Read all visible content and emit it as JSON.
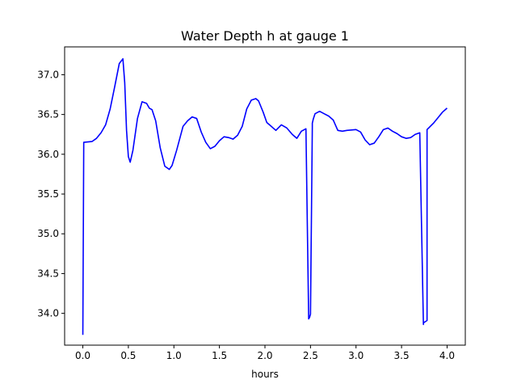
{
  "chart_data": {
    "type": "line",
    "title": "Water Depth h at gauge 1",
    "xlabel": "hours",
    "ylabel": "",
    "xlim": [
      -0.2,
      4.2
    ],
    "ylim": [
      33.6,
      37.35
    ],
    "grid": false,
    "xticks": [
      {
        "value": 0.0,
        "label": "0.0"
      },
      {
        "value": 0.5,
        "label": "0.5"
      },
      {
        "value": 1.0,
        "label": "1.0"
      },
      {
        "value": 1.5,
        "label": "1.5"
      },
      {
        "value": 2.0,
        "label": "2.0"
      },
      {
        "value": 2.5,
        "label": "2.5"
      },
      {
        "value": 3.0,
        "label": "3.0"
      },
      {
        "value": 3.5,
        "label": "3.5"
      },
      {
        "value": 4.0,
        "label": "4.0"
      }
    ],
    "yticks": [
      {
        "value": 34.0,
        "label": "34.0"
      },
      {
        "value": 34.5,
        "label": "34.5"
      },
      {
        "value": 35.0,
        "label": "35.0"
      },
      {
        "value": 35.5,
        "label": "35.5"
      },
      {
        "value": 36.0,
        "label": "36.0"
      },
      {
        "value": 36.5,
        "label": "36.5"
      },
      {
        "value": 37.0,
        "label": "37.0"
      }
    ],
    "series": [
      {
        "color": "#0000ff",
        "x": [
          0.0,
          0.01,
          0.1,
          0.15,
          0.2,
          0.25,
          0.3,
          0.35,
          0.4,
          0.44,
          0.46,
          0.48,
          0.5,
          0.52,
          0.55,
          0.6,
          0.65,
          0.7,
          0.73,
          0.76,
          0.8,
          0.85,
          0.9,
          0.95,
          0.98,
          1.03,
          1.1,
          1.15,
          1.2,
          1.25,
          1.3,
          1.35,
          1.4,
          1.45,
          1.5,
          1.55,
          1.6,
          1.65,
          1.7,
          1.75,
          1.8,
          1.85,
          1.9,
          1.93,
          1.98,
          2.02,
          2.07,
          2.12,
          2.18,
          2.24,
          2.3,
          2.35,
          2.4,
          2.45,
          2.48,
          2.49,
          2.5,
          2.52,
          2.52,
          2.53,
          2.55,
          2.6,
          2.65,
          2.7,
          2.75,
          2.8,
          2.85,
          2.9,
          3.0,
          3.05,
          3.1,
          3.15,
          3.2,
          3.25,
          3.3,
          3.35,
          3.4,
          3.45,
          3.5,
          3.55,
          3.6,
          3.65,
          3.7,
          3.74,
          3.74,
          3.78,
          3.78,
          3.85,
          3.9,
          3.95,
          4.0
        ],
        "y": [
          33.73,
          36.15,
          36.16,
          36.2,
          36.27,
          36.37,
          36.57,
          36.85,
          37.14,
          37.2,
          36.9,
          36.3,
          35.97,
          35.9,
          36.05,
          36.45,
          36.66,
          36.64,
          36.58,
          36.56,
          36.42,
          36.08,
          35.85,
          35.81,
          35.86,
          36.05,
          36.35,
          36.42,
          36.47,
          36.45,
          36.28,
          36.15,
          36.07,
          36.1,
          36.17,
          36.22,
          36.21,
          36.19,
          36.24,
          36.35,
          36.57,
          36.68,
          36.7,
          36.67,
          36.53,
          36.4,
          36.35,
          36.3,
          36.37,
          36.33,
          36.25,
          36.2,
          36.29,
          36.32,
          33.93,
          33.95,
          33.99,
          36.34,
          36.39,
          36.44,
          36.51,
          36.54,
          36.51,
          36.48,
          36.43,
          36.3,
          36.29,
          36.3,
          36.31,
          36.28,
          36.18,
          36.12,
          36.14,
          36.22,
          36.31,
          36.33,
          36.29,
          36.26,
          36.22,
          36.2,
          36.21,
          36.25,
          36.27,
          33.86,
          33.88,
          33.91,
          36.31,
          36.39,
          36.46,
          36.53,
          36.58
        ]
      }
    ]
  }
}
